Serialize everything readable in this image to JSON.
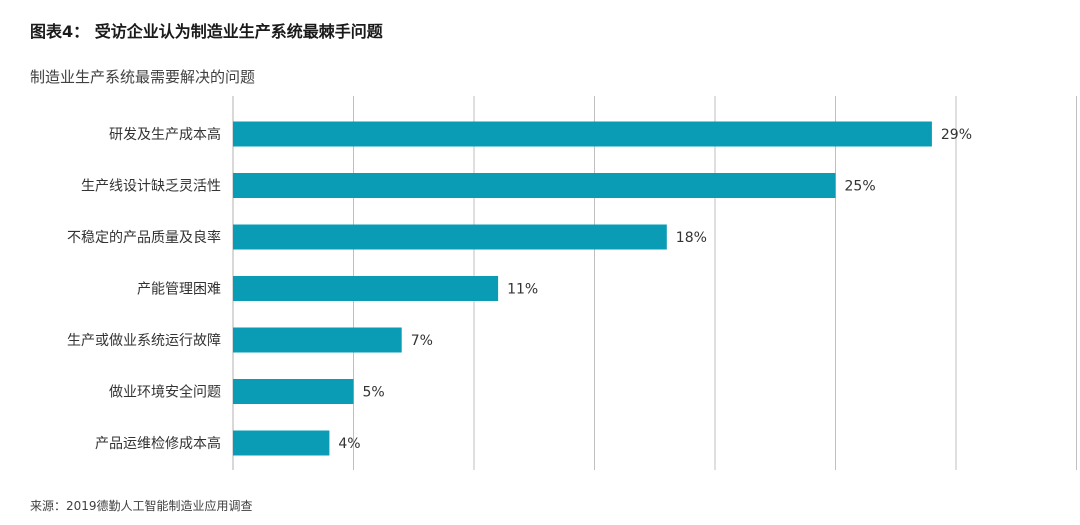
{
  "header": {
    "title": "图表4：  受访企业认为制造业生产系统最棘手问题",
    "subtitle": "制造业生产系统最需要解决的问题"
  },
  "footer": {
    "source": "来源：2019德勤人工智能制造业应用调查"
  },
  "chart_data": {
    "type": "bar",
    "orientation": "horizontal",
    "categories": [
      "研发及生产成本高",
      "生产线设计缺乏灵活性",
      "不稳定的产品质量及良率",
      "产能管理困难",
      "生产或做业系统运行故障",
      "做业环境安全问题",
      "产品运维检修成本高"
    ],
    "values": [
      29,
      25,
      18,
      11,
      7,
      5,
      4
    ],
    "value_labels": [
      "29%",
      "25%",
      "18%",
      "11%",
      "7%",
      "5%",
      "4%"
    ],
    "unit": "%",
    "xlim": [
      0,
      35
    ],
    "grid": "vertical",
    "legend": "none",
    "bar_color": "#0a9bb5",
    "grid_color": "#bfbfbf"
  }
}
